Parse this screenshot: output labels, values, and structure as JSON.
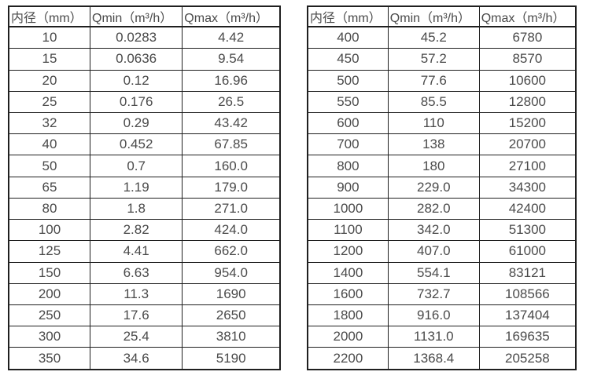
{
  "colors": {
    "text": "#4a4a4a",
    "border": "#1f1f1f",
    "background": "#ffffff"
  },
  "tables": [
    {
      "headers": [
        "内径（mm）",
        "Qmin（m³/h）",
        "Qmax（m³/h）"
      ],
      "rows": [
        [
          "10",
          "0.0283",
          "4.42"
        ],
        [
          "15",
          "0.0636",
          "9.54"
        ],
        [
          "20",
          "0.12",
          "16.96"
        ],
        [
          "25",
          "0.176",
          "26.5"
        ],
        [
          "32",
          "0.29",
          "43.42"
        ],
        [
          "40",
          "0.452",
          "67.85"
        ],
        [
          "50",
          "0.7",
          "160.0"
        ],
        [
          "65",
          "1.19",
          "179.0"
        ],
        [
          "80",
          "1.8",
          "271.0"
        ],
        [
          "100",
          "2.82",
          "424.0"
        ],
        [
          "125",
          "4.41",
          "662.0"
        ],
        [
          "150",
          "6.63",
          "954.0"
        ],
        [
          "200",
          "11.3",
          "1690"
        ],
        [
          "250",
          "17.6",
          "2650"
        ],
        [
          "300",
          "25.4",
          "3810"
        ],
        [
          "350",
          "34.6",
          "5190"
        ]
      ]
    },
    {
      "headers": [
        "内径（mm）",
        "Qmin（m³/h）",
        "Qmax（m³/h）"
      ],
      "rows": [
        [
          "400",
          "45.2",
          "6780"
        ],
        [
          "450",
          "57.2",
          "8570"
        ],
        [
          "500",
          "77.6",
          "10600"
        ],
        [
          "550",
          "85.5",
          "12800"
        ],
        [
          "600",
          "110",
          "15200"
        ],
        [
          "700",
          "138",
          "20700"
        ],
        [
          "800",
          "180",
          "27100"
        ],
        [
          "900",
          "229.0",
          "34300"
        ],
        [
          "1000",
          "282.0",
          "42400"
        ],
        [
          "1100",
          "342.0",
          "51300"
        ],
        [
          "1200",
          "407.0",
          "61000"
        ],
        [
          "1400",
          "554.1",
          "83121"
        ],
        [
          "1600",
          "732.7",
          "108566"
        ],
        [
          "1800",
          "916.0",
          "137404"
        ],
        [
          "2000",
          "1131.0",
          "169635"
        ],
        [
          "2200",
          "1368.4",
          "205258"
        ]
      ]
    }
  ]
}
